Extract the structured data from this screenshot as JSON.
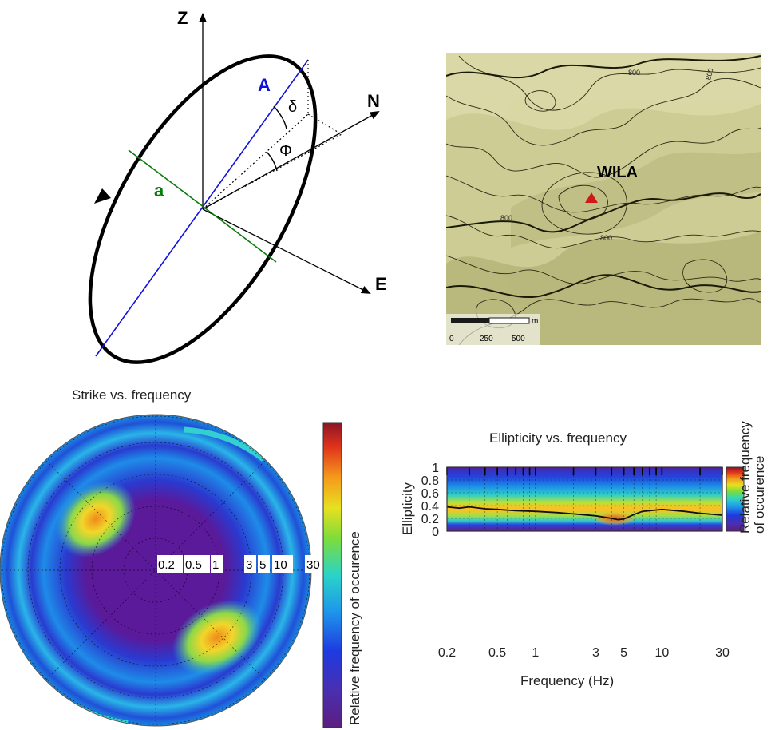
{
  "diagram": {
    "axis_z": "Z",
    "axis_n": "N",
    "axis_e": "E",
    "major_axis": "A",
    "minor_axis": "a",
    "delta": "δ",
    "phi": "Φ"
  },
  "map": {
    "station": "WILA",
    "contour_labels": [
      "800",
      "800",
      "800",
      "800"
    ],
    "scale_unit": "m",
    "scale_ticks": [
      "0",
      "250",
      "500"
    ]
  },
  "strike_plot": {
    "title": "Strike vs. frequency",
    "radial_labels": [
      "0.2",
      "0.5",
      "1",
      "3",
      "5",
      "10",
      "30"
    ],
    "colorbar_label": "Relative frequency of occurence"
  },
  "chart_data": {
    "type": "heatmap",
    "title": "Ellipticity vs. frequency",
    "xlabel": "Frequency (Hz)",
    "ylabel": "Ellipticity",
    "x_scale": "log",
    "xlim": [
      0.2,
      30
    ],
    "ylim": [
      0,
      1
    ],
    "x_ticks": [
      "0.2",
      "0.5",
      "1",
      "3",
      "5",
      "10",
      "30"
    ],
    "y_ticks": [
      "0",
      "0.2",
      "0.4",
      "0.6",
      "0.8",
      "1"
    ],
    "colorbar_label": "Relative frequency of occurence",
    "series": [
      {
        "x": [
          0.2,
          0.25,
          0.3,
          0.4,
          0.5,
          0.7,
          1,
          1.5,
          2,
          3,
          4,
          4.5,
          5,
          6,
          7,
          10,
          15,
          20,
          30
        ],
        "y": [
          0.38,
          0.36,
          0.38,
          0.35,
          0.34,
          0.32,
          0.31,
          0.29,
          0.27,
          0.24,
          0.2,
          0.18,
          0.19,
          0.26,
          0.31,
          0.34,
          0.31,
          0.28,
          0.25
        ]
      }
    ]
  }
}
